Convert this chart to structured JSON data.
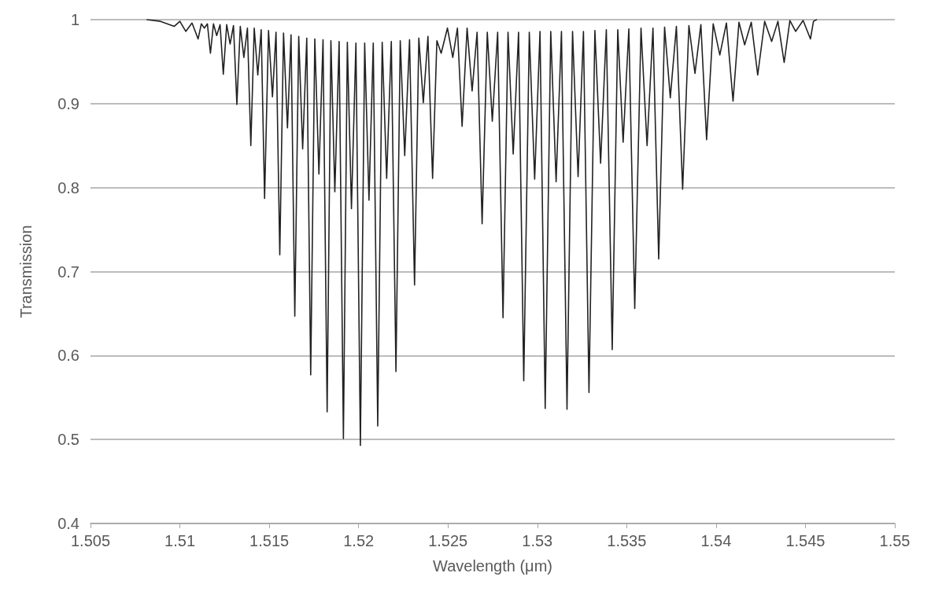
{
  "chart_data": {
    "type": "line",
    "xlabel": "Wavelength (μm)",
    "ylabel": "Transmission",
    "xlim": [
      1.505,
      1.55
    ],
    "xticks": [
      1.505,
      1.51,
      1.515,
      1.52,
      1.525,
      1.53,
      1.535,
      1.54,
      1.545,
      1.55
    ],
    "ylim": [
      0.4,
      1
    ],
    "yticks": [
      0.4,
      0.5,
      0.6,
      0.7,
      0.8,
      0.9,
      1
    ],
    "grid": "y",
    "marker": "none",
    "line_style": "solid",
    "series": [
      {
        "color": "#222222",
        "x": [
          1.50816,
          1.50892,
          1.50968,
          1.51,
          1.51033,
          1.51068,
          1.51102,
          1.5112,
          1.51137,
          1.51154,
          1.51171,
          1.51188,
          1.51206,
          1.51225,
          1.51243,
          1.51262,
          1.51281,
          1.513,
          1.51319,
          1.51338,
          1.51358,
          1.51378,
          1.51397,
          1.51416,
          1.51436,
          1.51455,
          1.51474,
          1.51496,
          1.51518,
          1.51538,
          1.51559,
          1.5158,
          1.51602,
          1.51622,
          1.51643,
          1.51665,
          1.51687,
          1.5171,
          1.51732,
          1.51755,
          1.51778,
          1.51801,
          1.51824,
          1.51845,
          1.51867,
          1.51891,
          1.51915,
          1.51937,
          1.5196,
          1.51985,
          1.5201,
          1.52034,
          1.52058,
          1.52082,
          1.52107,
          1.52132,
          1.52157,
          1.52183,
          1.52209,
          1.52233,
          1.52258,
          1.52285,
          1.52313,
          1.52337,
          1.52362,
          1.52388,
          1.52414,
          1.52438,
          1.52462,
          1.52497,
          1.52527,
          1.52553,
          1.52579,
          1.52607,
          1.52635,
          1.52663,
          1.52691,
          1.5272,
          1.52748,
          1.52778,
          1.52808,
          1.52836,
          1.52865,
          1.52895,
          1.52924,
          1.52955,
          1.52985,
          1.53015,
          1.53044,
          1.53075,
          1.53105,
          1.53135,
          1.53166,
          1.53197,
          1.53228,
          1.53258,
          1.53289,
          1.53322,
          1.53354,
          1.53386,
          1.53419,
          1.5345,
          1.5348,
          1.53512,
          1.53545,
          1.5358,
          1.53614,
          1.53647,
          1.53679,
          1.53712,
          1.53744,
          1.53778,
          1.53813,
          1.53848,
          1.53882,
          1.53915,
          1.53947,
          1.53984,
          1.54021,
          1.54058,
          1.54095,
          1.54128,
          1.5416,
          1.54197,
          1.54233,
          1.54272,
          1.54311,
          1.54346,
          1.54381,
          1.54413,
          1.54445,
          1.54487,
          1.54528,
          1.54545,
          1.54562
        ],
        "values": [
          1.0,
          0.998,
          0.992,
          0.998,
          0.986,
          0.996,
          0.977,
          0.995,
          0.99,
          0.995,
          0.96,
          0.995,
          0.981,
          0.994,
          0.935,
          0.994,
          0.971,
          0.993,
          0.899,
          0.992,
          0.955,
          0.99,
          0.85,
          0.99,
          0.934,
          0.988,
          0.787,
          0.987,
          0.908,
          0.985,
          0.72,
          0.984,
          0.871,
          0.982,
          0.647,
          0.98,
          0.846,
          0.978,
          0.577,
          0.977,
          0.816,
          0.976,
          0.533,
          0.975,
          0.795,
          0.974,
          0.501,
          0.973,
          0.775,
          0.972,
          0.493,
          0.972,
          0.785,
          0.972,
          0.516,
          0.973,
          0.811,
          0.974,
          0.581,
          0.975,
          0.838,
          0.976,
          0.684,
          0.978,
          0.901,
          0.98,
          0.811,
          0.975,
          0.96,
          0.99,
          0.955,
          0.99,
          0.873,
          0.99,
          0.915,
          0.985,
          0.757,
          0.985,
          0.879,
          0.985,
          0.645,
          0.985,
          0.84,
          0.985,
          0.57,
          0.985,
          0.81,
          0.986,
          0.537,
          0.986,
          0.807,
          0.986,
          0.536,
          0.986,
          0.813,
          0.986,
          0.556,
          0.987,
          0.829,
          0.988,
          0.607,
          0.988,
          0.854,
          0.989,
          0.656,
          0.99,
          0.85,
          0.99,
          0.715,
          0.991,
          0.907,
          0.992,
          0.798,
          0.993,
          0.936,
          0.994,
          0.857,
          0.995,
          0.958,
          0.996,
          0.903,
          0.997,
          0.97,
          0.997,
          0.934,
          0.998,
          0.974,
          0.998,
          0.949,
          0.999,
          0.986,
          0.999,
          0.977,
          0.998,
          1.0
        ]
      }
    ]
  }
}
